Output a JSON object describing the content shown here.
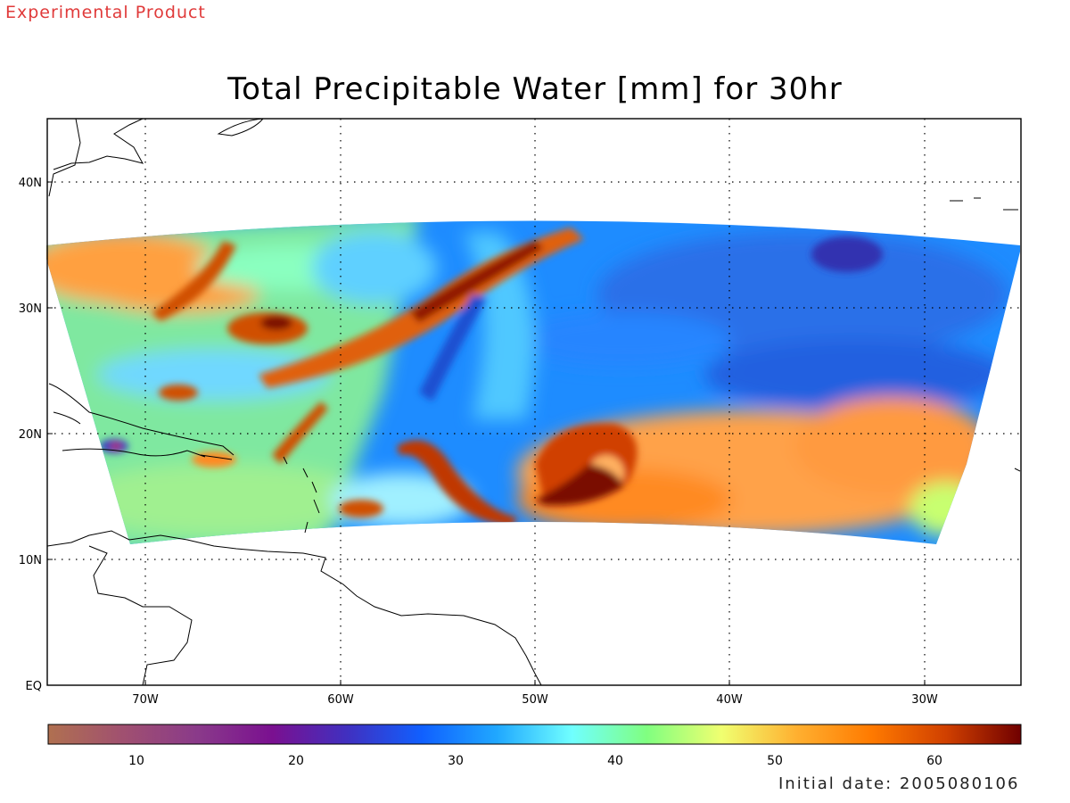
{
  "header": {
    "experimental_label": "Experimental Product",
    "title": "Total Precipitable Water [mm] for 30hr"
  },
  "map": {
    "domain_lon": [
      -75,
      -25
    ],
    "domain_lat": [
      0,
      45
    ],
    "lon_ticks": [
      {
        "value": -70,
        "label": "70W"
      },
      {
        "value": -60,
        "label": "60W"
      },
      {
        "value": -50,
        "label": "50W"
      },
      {
        "value": -40,
        "label": "40W"
      },
      {
        "value": -30,
        "label": "30W"
      }
    ],
    "lat_ticks": [
      {
        "value": 0,
        "label": "EQ"
      },
      {
        "value": 10,
        "label": "10N"
      },
      {
        "value": 20,
        "label": "20N"
      },
      {
        "value": 30,
        "label": "30N"
      },
      {
        "value": 40,
        "label": "40N"
      }
    ],
    "gridlines": "dotted",
    "field": "Total Precipitable Water",
    "units": "mm"
  },
  "colorbar": {
    "min": 5,
    "max": 66,
    "tick_labels": [
      "10",
      "20",
      "30",
      "40",
      "50",
      "60"
    ],
    "colors": [
      "#b07050",
      "#a05070",
      "#8a3a8a",
      "#7a1090",
      "#4030c0",
      "#1060ff",
      "#20a8ff",
      "#70ffff",
      "#80ff80",
      "#f0ff70",
      "#ffb030",
      "#ff7a00",
      "#d04000",
      "#700000"
    ]
  },
  "footer": {
    "initial_date_text": "Initial date: 2005080106"
  }
}
